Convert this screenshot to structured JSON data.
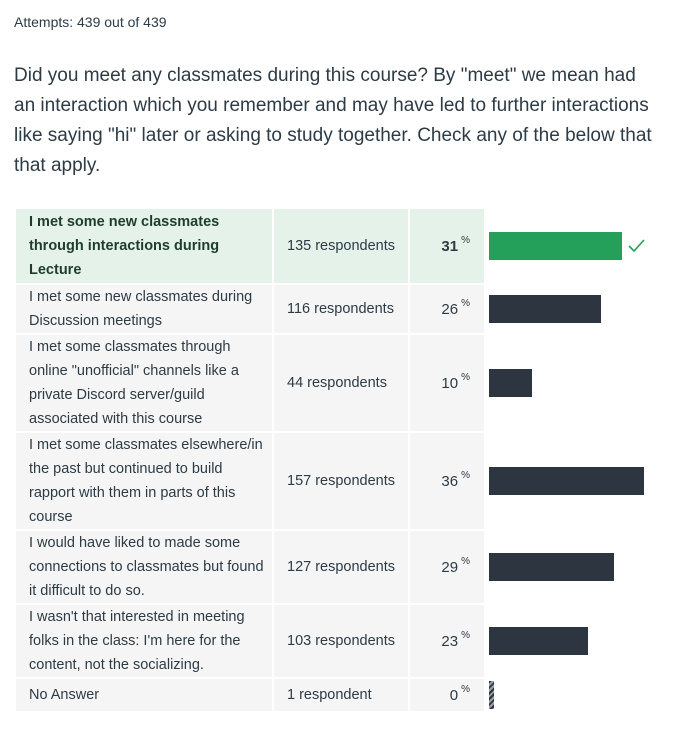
{
  "attempts": "Attempts: 439 out of 439",
  "question": "Did you meet any classmates during this course? By \"meet\" we mean had an interaction which you remember and may have led to further interactions like saying \"hi\" later or asking to study together. Check any of the below that that apply.",
  "colors": {
    "correct_bg": "#e4f2ea",
    "correct_bar": "#25a05a",
    "bar": "#2d3540",
    "cell_bg": "#f5f5f5"
  },
  "answers": [
    {
      "label": "I met some new classmates through interactions during Lecture",
      "respondents": "135 respondents",
      "percent": "31",
      "pct_sign": "%",
      "fraction": 0.31,
      "correct": true,
      "icon": "check-icon"
    },
    {
      "label": "I met some new classmates during Discussion meetings",
      "respondents": "116 respondents",
      "percent": "26",
      "pct_sign": "%",
      "fraction": 0.26,
      "correct": false
    },
    {
      "label": "I met some classmates through online \"unofficial\" channels like a private Discord server/guild associated with this course",
      "respondents": "44 respondents",
      "percent": "10",
      "pct_sign": "%",
      "fraction": 0.1,
      "correct": false
    },
    {
      "label": "I met some classmates elsewhere/in the past but continued to build rapport with them in parts of this course",
      "respondents": "157 respondents",
      "percent": "36",
      "pct_sign": "%",
      "fraction": 0.36,
      "correct": false
    },
    {
      "label": "I would have liked to made some connections to classmates but found it difficult to do so.",
      "respondents": "127 respondents",
      "percent": "29",
      "pct_sign": "%",
      "fraction": 0.29,
      "correct": false
    },
    {
      "label": "I wasn't that interested in meeting folks in the class: I'm here for the content, not the socializing.",
      "respondents": "103 respondents",
      "percent": "23",
      "pct_sign": "%",
      "fraction": 0.23,
      "correct": false
    },
    {
      "label": "No Answer",
      "respondents": "1 respondent",
      "percent": "0",
      "pct_sign": "%",
      "fraction": 0.0,
      "correct": false
    }
  ]
}
